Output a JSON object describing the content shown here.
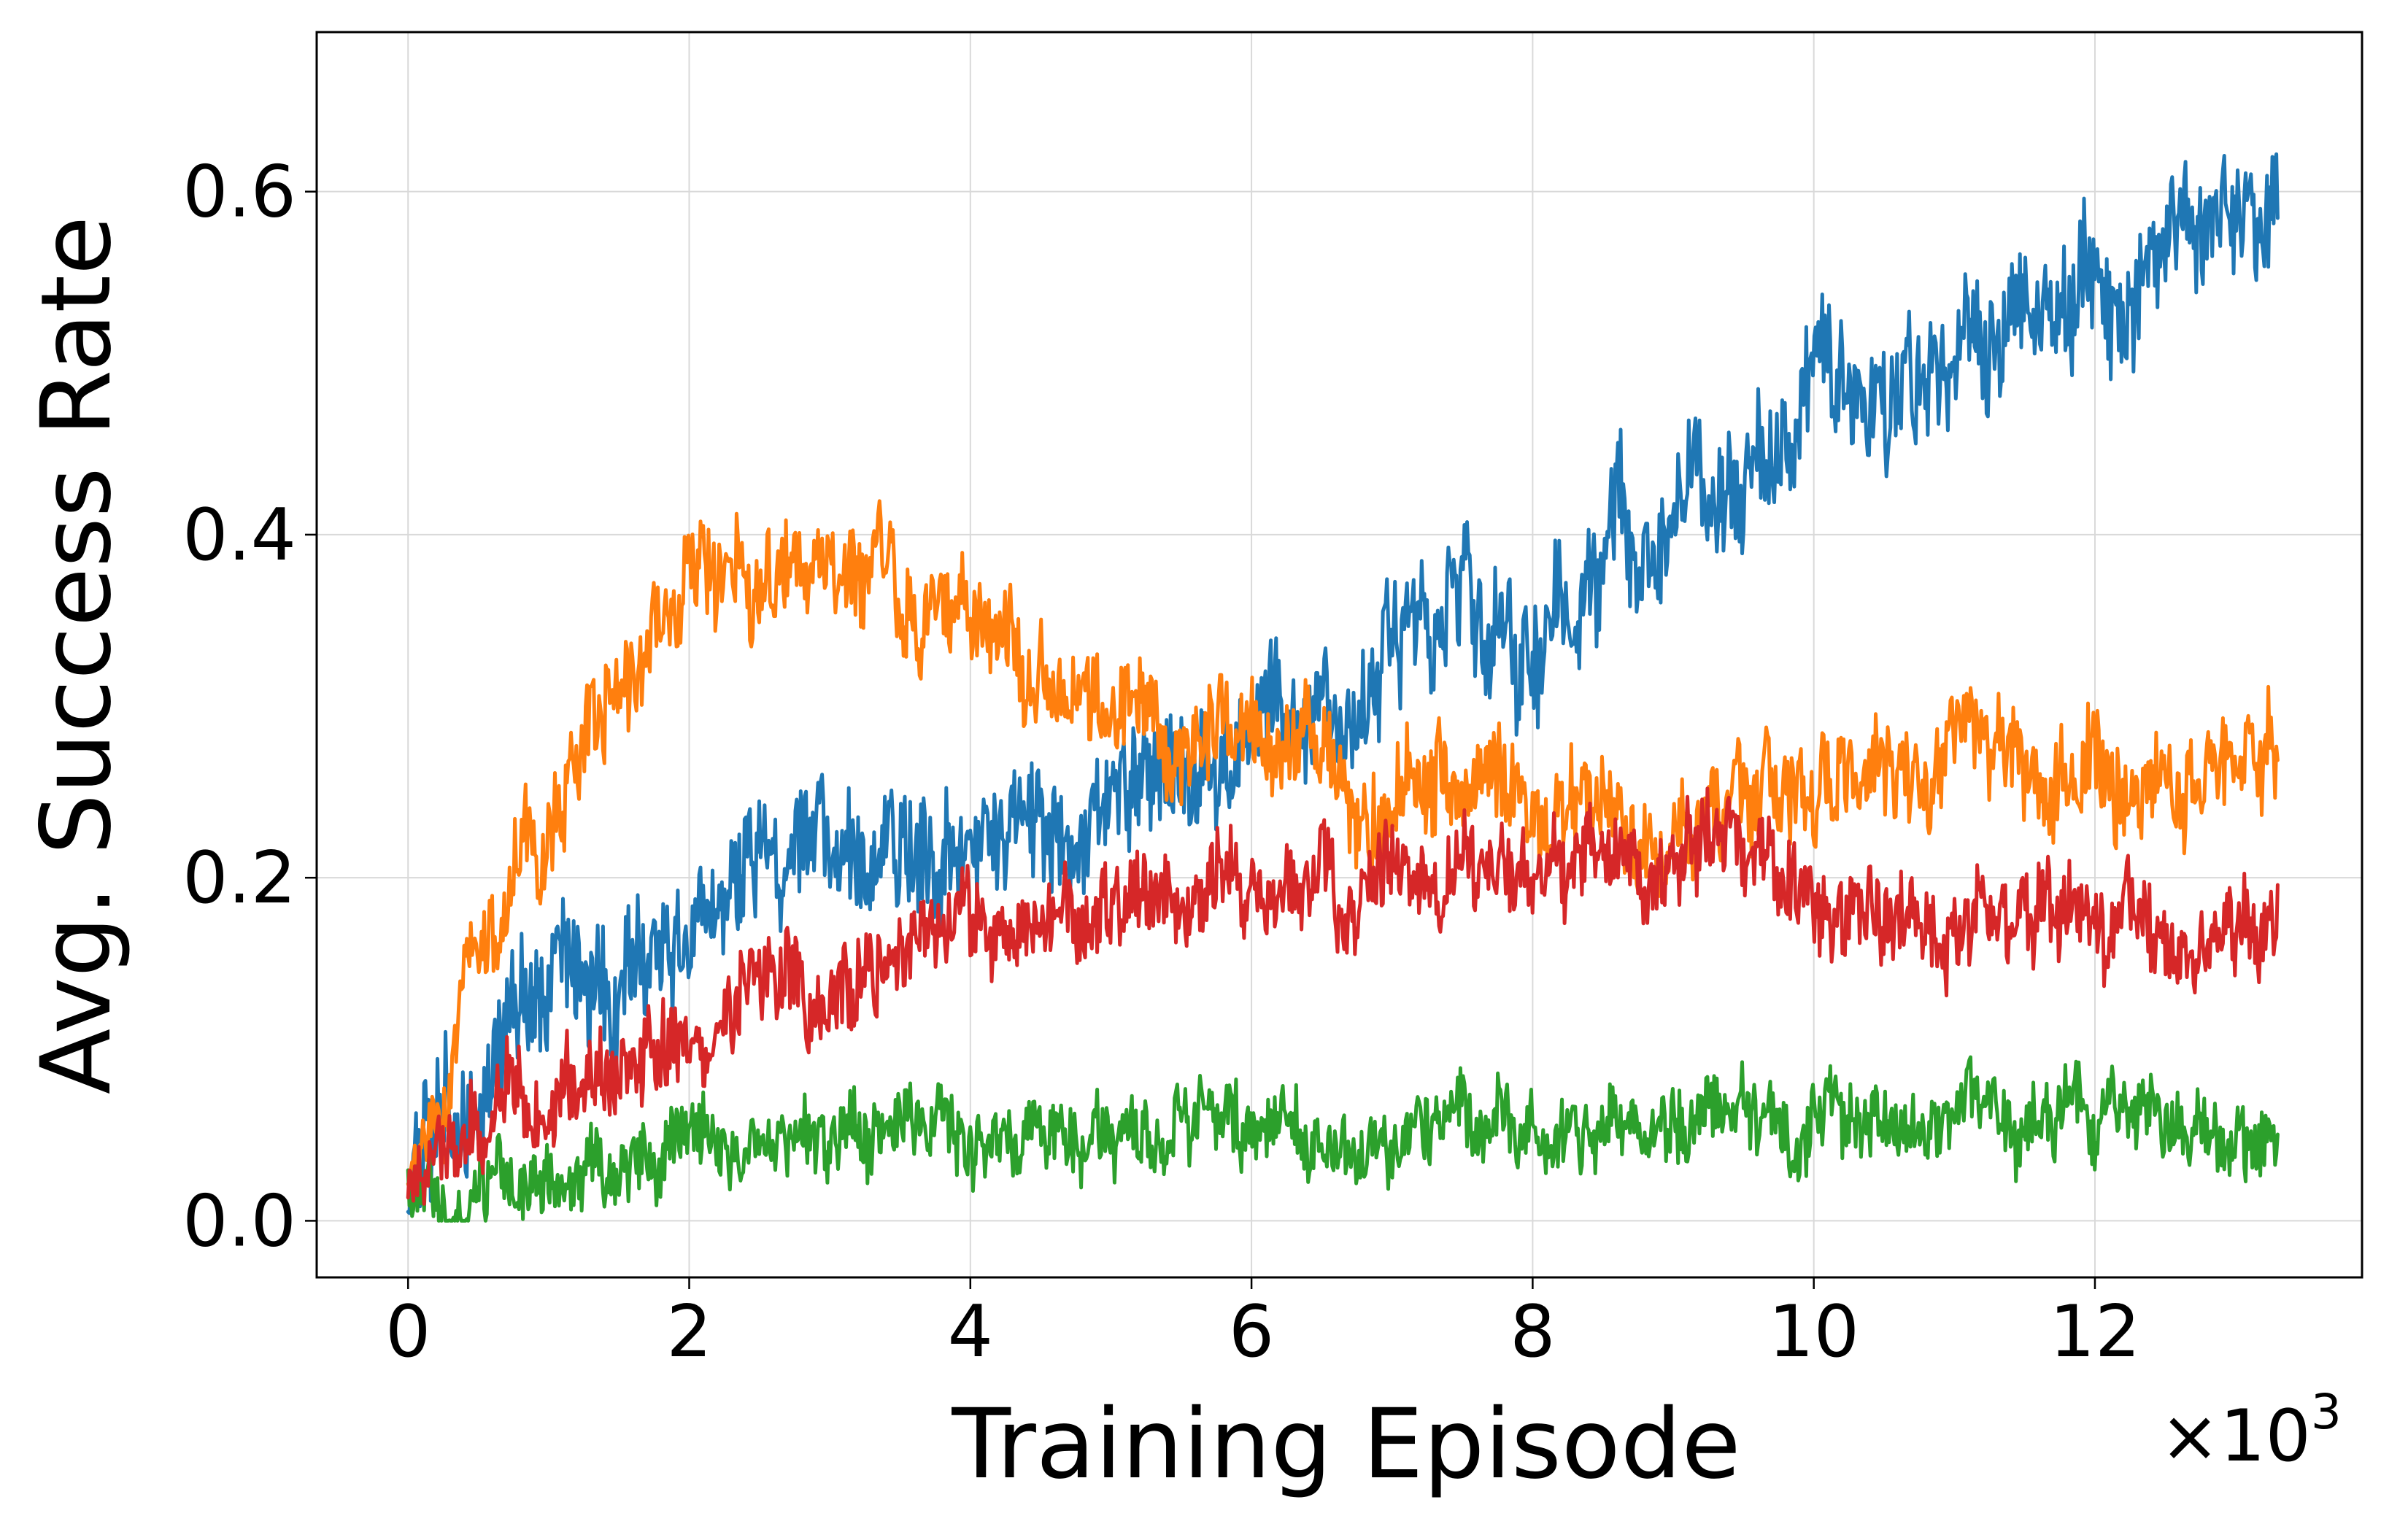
{
  "chart_data": {
    "type": "line",
    "title": "",
    "xlabel": "Training Episode",
    "ylabel": "Avg. Success Rate",
    "x_multiplier_label": "×10",
    "x_multiplier_exponent": "3",
    "xlim": [
      -0.65,
      13.9
    ],
    "ylim": [
      -0.033,
      0.693
    ],
    "x_ticks": [
      0,
      2,
      4,
      6,
      8,
      10,
      12
    ],
    "x_tick_labels": [
      "0",
      "2",
      "4",
      "6",
      "8",
      "10",
      "12"
    ],
    "y_ticks": [
      0.0,
      0.2,
      0.4,
      0.6
    ],
    "y_tick_labels": [
      "0.0",
      "0.2",
      "0.4",
      "0.6"
    ],
    "grid": true,
    "legend": "none",
    "x_max": 13.3,
    "series": [
      {
        "color": "#1f77b4",
        "noise": 0.03,
        "x": [
          0,
          0.2,
          0.5,
          0.8,
          1.0,
          1.5,
          2.0,
          2.5,
          3.0,
          3.5,
          4.0,
          4.5,
          5.0,
          5.5,
          6.0,
          6.5,
          7.0,
          7.5,
          8.0,
          8.3,
          8.7,
          9.0,
          9.5,
          10.0,
          10.5,
          11.0,
          11.5,
          12.0,
          12.5,
          13.0,
          13.3
        ],
        "y": [
          0.01,
          0.04,
          0.08,
          0.12,
          0.12,
          0.15,
          0.17,
          0.2,
          0.21,
          0.23,
          0.22,
          0.23,
          0.24,
          0.26,
          0.28,
          0.3,
          0.33,
          0.36,
          0.32,
          0.36,
          0.39,
          0.4,
          0.42,
          0.48,
          0.5,
          0.52,
          0.53,
          0.54,
          0.55,
          0.58,
          0.59
        ]
      },
      {
        "color": "#ff7f0e",
        "noise": 0.025,
        "x": [
          0,
          0.2,
          0.5,
          1.0,
          1.5,
          2.0,
          2.5,
          3.0,
          3.5,
          4.0,
          4.5,
          5.0,
          5.5,
          6.0,
          6.5,
          7.0,
          8.0,
          9.0,
          10.0,
          11.0,
          12.0,
          13.0,
          13.3
        ],
        "y": [
          0.01,
          0.06,
          0.16,
          0.25,
          0.31,
          0.36,
          0.38,
          0.37,
          0.36,
          0.34,
          0.32,
          0.3,
          0.28,
          0.27,
          0.26,
          0.25,
          0.24,
          0.24,
          0.25,
          0.26,
          0.26,
          0.26,
          0.27
        ]
      },
      {
        "color": "#2ca02c",
        "noise": 0.018,
        "x": [
          0,
          0.5,
          1.0,
          2.0,
          3.0,
          4.0,
          5.0,
          6.0,
          7.0,
          8.0,
          9.0,
          10.0,
          11.0,
          12.0,
          13.0,
          13.3
        ],
        "y": [
          0.01,
          0.02,
          0.03,
          0.04,
          0.04,
          0.05,
          0.05,
          0.05,
          0.05,
          0.05,
          0.05,
          0.06,
          0.06,
          0.06,
          0.06,
          0.06
        ]
      },
      {
        "color": "#d62728",
        "noise": 0.022,
        "x": [
          0,
          0.5,
          1.0,
          2.0,
          3.0,
          4.0,
          5.0,
          6.0,
          7.0,
          8.0,
          9.0,
          9.5,
          10.0,
          11.0,
          12.0,
          13.0,
          13.3
        ],
        "y": [
          0.02,
          0.05,
          0.07,
          0.11,
          0.14,
          0.17,
          0.19,
          0.19,
          0.2,
          0.21,
          0.22,
          0.22,
          0.19,
          0.17,
          0.17,
          0.17,
          0.17
        ]
      }
    ]
  }
}
